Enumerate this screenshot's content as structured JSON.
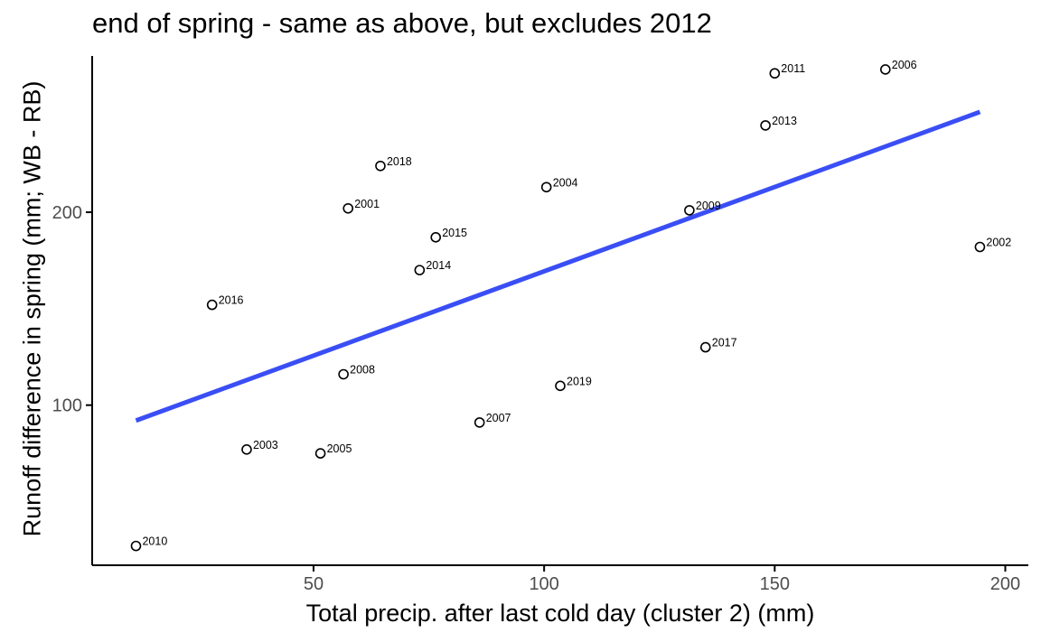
{
  "chart_data": {
    "type": "scatter",
    "title": "end of spring - same as above, but excludes 2012",
    "xlabel": "Total precip. after last cold day (cluster 2) (mm)",
    "ylabel": "Runoff difference in spring (mm; WB - RB)",
    "xlim": [
      2,
      205
    ],
    "ylim": [
      17,
      281
    ],
    "x_ticks": [
      50,
      100,
      150,
      200
    ],
    "y_ticks": [
      100,
      200
    ],
    "grid": false,
    "legend": "none",
    "colors": {
      "points": "#000000",
      "fit_line": "#3a4ef5"
    },
    "points": [
      {
        "label": "2001",
        "x": 57.5,
        "y": 202
      },
      {
        "label": "2002",
        "x": 194.5,
        "y": 182
      },
      {
        "label": "2003",
        "x": 35.5,
        "y": 77
      },
      {
        "label": "2004",
        "x": 100.5,
        "y": 213
      },
      {
        "label": "2005",
        "x": 51.5,
        "y": 75
      },
      {
        "label": "2006",
        "x": 174,
        "y": 274
      },
      {
        "label": "2007",
        "x": 86,
        "y": 91
      },
      {
        "label": "2008",
        "x": 56.5,
        "y": 116
      },
      {
        "label": "2009",
        "x": 131.5,
        "y": 201
      },
      {
        "label": "2010",
        "x": 11.5,
        "y": 27
      },
      {
        "label": "2011",
        "x": 150,
        "y": 272
      },
      {
        "label": "2013",
        "x": 148,
        "y": 245
      },
      {
        "label": "2014",
        "x": 73,
        "y": 170
      },
      {
        "label": "2015",
        "x": 76.5,
        "y": 187
      },
      {
        "label": "2016",
        "x": 28,
        "y": 152
      },
      {
        "label": "2017",
        "x": 135,
        "y": 130
      },
      {
        "label": "2018",
        "x": 64.5,
        "y": 224
      },
      {
        "label": "2019",
        "x": 103.5,
        "y": 110
      }
    ],
    "fit_line": {
      "x": [
        11.5,
        194.5
      ],
      "y": [
        92,
        252
      ]
    }
  }
}
